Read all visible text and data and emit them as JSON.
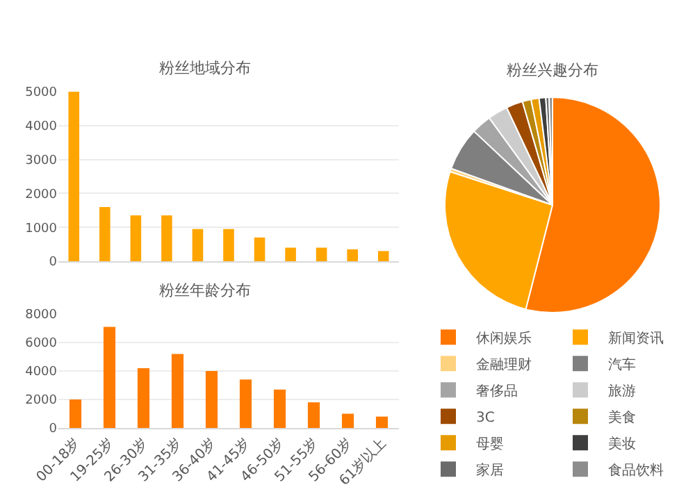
{
  "chart_data": [
    {
      "type": "bar",
      "title": "粉丝地域分布",
      "categories": [
        null,
        null,
        null,
        null,
        null,
        null,
        null,
        null,
        null,
        null,
        null
      ],
      "values": [
        5000,
        1600,
        1350,
        1350,
        950,
        950,
        700,
        400,
        400,
        350,
        300
      ],
      "color": "#ffa500",
      "ylim": [
        0,
        5000
      ],
      "yticks": [
        0,
        1000,
        2000,
        3000,
        4000,
        5000
      ],
      "grid": "y",
      "legend": false
    },
    {
      "type": "bar",
      "title": "粉丝年龄分布",
      "categories": [
        "00-18岁",
        "19-25岁",
        "26-30岁",
        "31-35岁",
        "36-40岁",
        "41-45岁",
        "46-50岁",
        "51-55岁",
        "56-60岁",
        "61岁以上"
      ],
      "values": [
        2000,
        7100,
        4200,
        5200,
        4000,
        3400,
        2700,
        1800,
        1000,
        800
      ],
      "color": "#ff7b00",
      "ylim": [
        0,
        8000
      ],
      "yticks": [
        0,
        2000,
        4000,
        6000,
        8000
      ],
      "grid": "y",
      "legend": false
    },
    {
      "type": "pie",
      "title": "粉丝兴趣分布",
      "categories": [
        "休闲娱乐",
        "新闻资讯",
        "金融理财",
        "汽车",
        "奢侈品",
        "旅游",
        "3C",
        "美食",
        "母婴",
        "美妆",
        "家居",
        "食品饮料"
      ],
      "values": [
        54,
        26,
        0.5,
        6.5,
        3,
        3,
        2.5,
        1.3,
        1.2,
        1,
        0.5,
        0.5
      ],
      "colors": [
        "#ff7700",
        "#ffa500",
        "#ffd27f",
        "#7f7f7f",
        "#a5a5a5",
        "#cccccc",
        "#9e4a00",
        "#b8860b",
        "#e69b00",
        "#3f3f3f",
        "#6b6b6b",
        "#8c8c8c"
      ],
      "legend": "bottom"
    }
  ]
}
